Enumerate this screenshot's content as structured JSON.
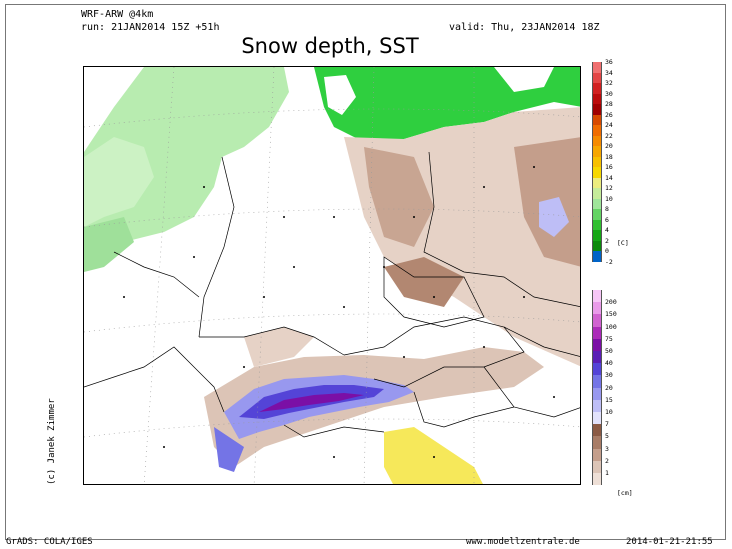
{
  "header": {
    "model": "WRF-ARW @4km",
    "run": "run: 21JAN2014 15Z +51h",
    "valid": "valid: Thu, 23JAN2014 18Z",
    "title": "Snow depth, SST"
  },
  "credit": "(c) Janek Zimmer",
  "footer": {
    "left": "GrADS: COLA/IGES",
    "center": "www.modellzentrale.de",
    "right": "2014-01-21-21:55"
  },
  "sst_scale": {
    "unit": "[C]",
    "labels": [
      "36",
      "34",
      "32",
      "30",
      "28",
      "26",
      "24",
      "22",
      "20",
      "18",
      "16",
      "14",
      "12",
      "10",
      "8",
      "6",
      "4",
      "2",
      "0",
      "-2"
    ],
    "colors": [
      "#f07070",
      "#e34545",
      "#d12020",
      "#bb0b0b",
      "#a00000",
      "#d84a00",
      "#f06c00",
      "#f58a00",
      "#f6a600",
      "#f7c000",
      "#f6d800",
      "#ecec7e",
      "#c5ec9a",
      "#9fe59a",
      "#64d464",
      "#30bf30",
      "#14a614",
      "#0b8a0b",
      "#0064c8"
    ]
  },
  "snow_scale": {
    "unit": "[cm]",
    "labels": [
      "200",
      "150",
      "100",
      "75",
      "50",
      "40",
      "30",
      "20",
      "15",
      "10",
      "7",
      "5",
      "3",
      "2",
      "1"
    ],
    "colors": [
      "#f6c6f6",
      "#e99be9",
      "#d063d0",
      "#ab2bb9",
      "#7b0fa6",
      "#5a1eb5",
      "#5444d7",
      "#7474e6",
      "#9898ef",
      "#bebef6",
      "#e2e2fb",
      "#8b5a44",
      "#a87c66",
      "#c49e8b",
      "#dcc4b6",
      "#eedfd6"
    ]
  }
}
